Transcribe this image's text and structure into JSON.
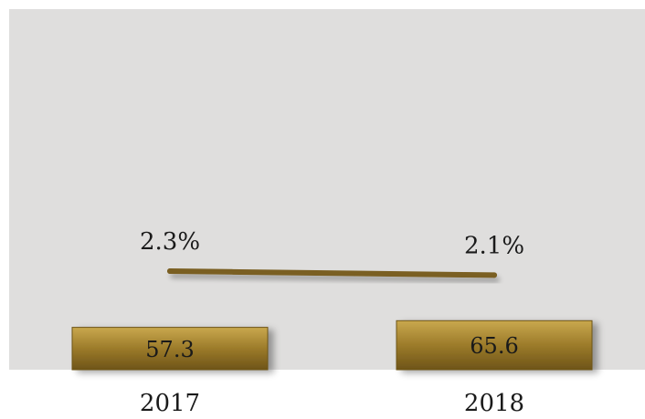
{
  "chart_data": {
    "type": "bar",
    "categories": [
      "2017",
      "2018"
    ],
    "series": [
      {
        "kind": "bar",
        "values": [
          57.3,
          65.6
        ],
        "value_labels": [
          "57.3",
          "65.6"
        ]
      },
      {
        "kind": "line",
        "values": [
          2.3,
          2.1
        ],
        "value_labels": [
          "2.3%",
          "2.1%"
        ]
      }
    ],
    "title": "",
    "xlabel": "",
    "ylabel": "",
    "grid": false,
    "legend": "none",
    "colors": {
      "plot_background": "#dfdedd",
      "bar_fill": "#9c7b2a",
      "bar_highlight": "#c9a84e",
      "bar_shadow": "#6e5418",
      "line": "#7a5f22",
      "text": "#1a1a1a"
    }
  }
}
